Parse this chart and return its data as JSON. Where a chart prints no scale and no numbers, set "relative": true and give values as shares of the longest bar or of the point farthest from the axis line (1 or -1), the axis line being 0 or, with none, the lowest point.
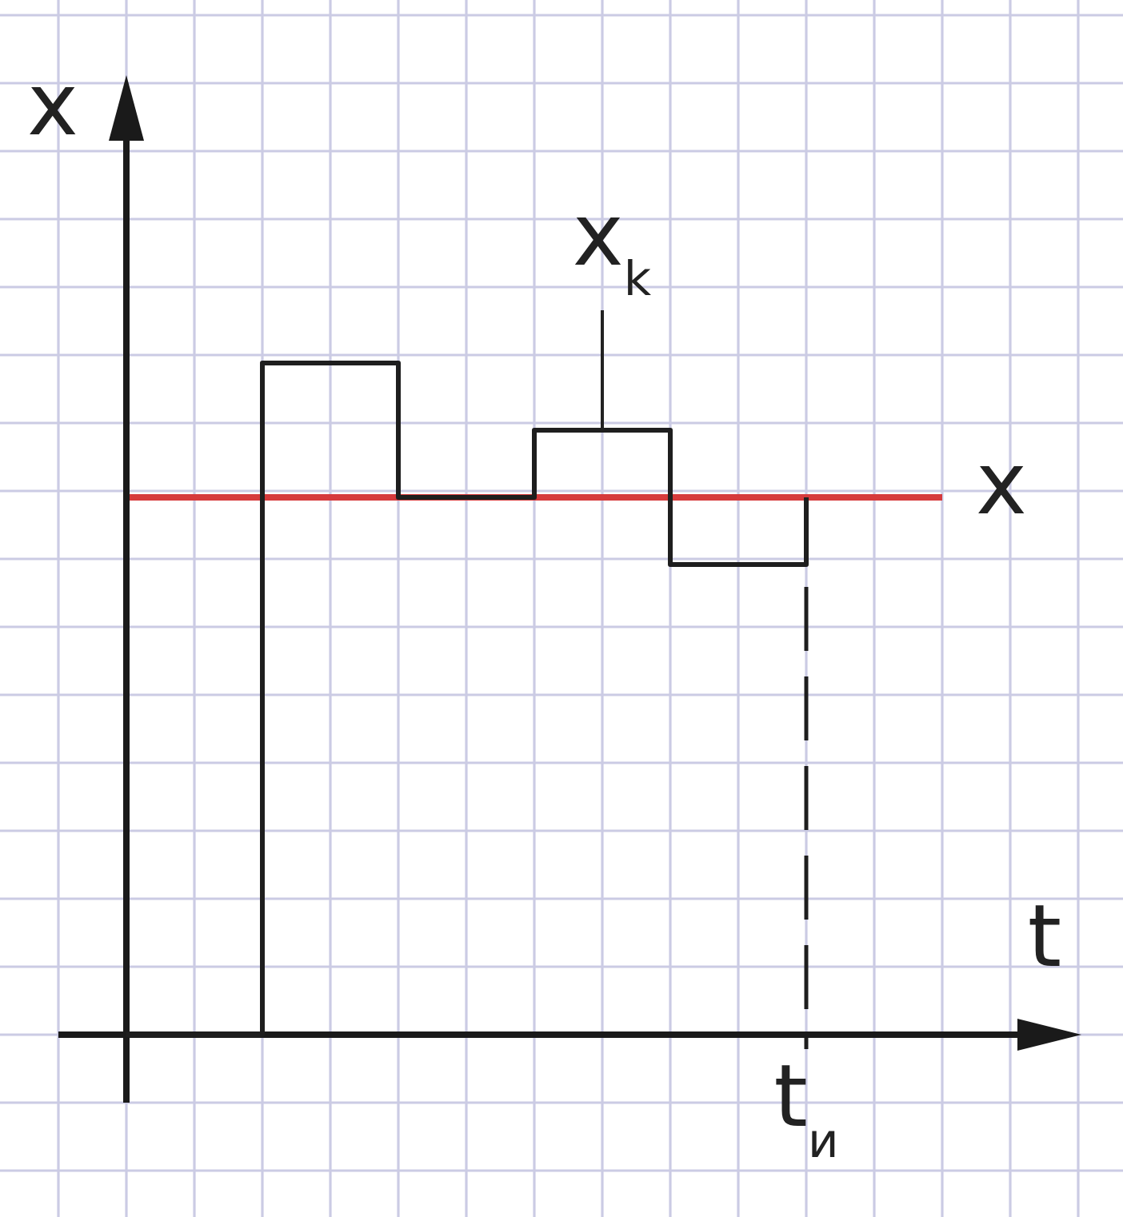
{
  "chart_data": {
    "type": "step",
    "relative": true,
    "categories": [
      null,
      null,
      null,
      null,
      null,
      null,
      null,
      null
    ],
    "values": [
      0,
      1,
      0.8,
      0.9,
      0.7,
      0.8,
      null,
      null
    ],
    "color": "#1e1e1e",
    "xlabel": "t",
    "ylabel": "x",
    "ref_lines": [
      {
        "axis": "y",
        "value": 0.8,
        "label": "x",
        "color": "#d63a3c"
      }
    ],
    "annotations": [
      {
        "text": "x$_{k}$",
        "y": 0.9
      },
      "t$_{и}$"
    ],
    "grid": true
  }
}
